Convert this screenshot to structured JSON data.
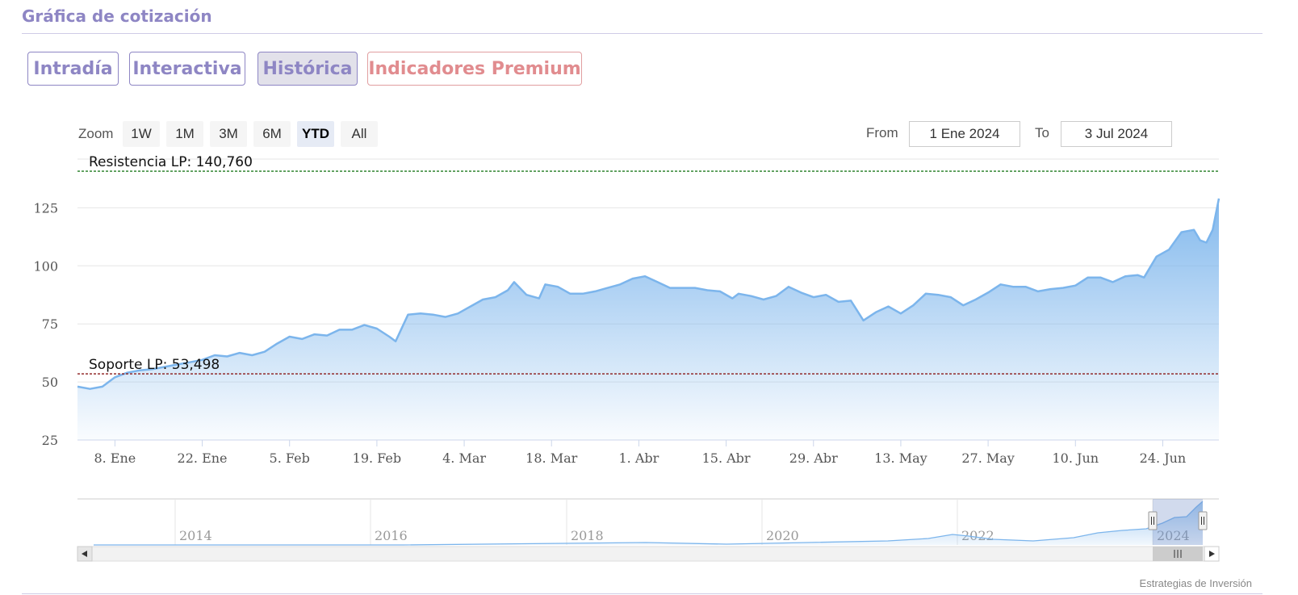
{
  "page": {
    "title": "Gráfica de cotización"
  },
  "tabs": [
    {
      "label": "Intradía"
    },
    {
      "label": "Interactiva"
    },
    {
      "label": "Histórica"
    },
    {
      "label": "Indicadores Premium"
    }
  ],
  "zoom": {
    "label": "Zoom",
    "buttons": [
      "1W",
      "1M",
      "3M",
      "6M",
      "YTD",
      "All"
    ],
    "selected": "YTD"
  },
  "range": {
    "from_label": "From",
    "from_value": "1 Ene 2024",
    "to_label": "To",
    "to_value": "3 Jul 2024"
  },
  "credits": "Estrategias de Inversión",
  "colors": {
    "accent": "#8e86c4",
    "premium": "#e18c8f",
    "series": "#7cb5ec",
    "resistance": "#1e7a1e",
    "support": "#8b1a1a"
  },
  "navigator_icons": {
    "left": "arrow-left-icon",
    "right": "arrow-right-icon",
    "thumb": "grip-icon"
  },
  "chart_data": {
    "type": "area",
    "x_start": "2024-01-02",
    "x_end": "2024-07-03",
    "ylim": [
      25,
      146
    ],
    "yticks": [
      25,
      50,
      75,
      100,
      125
    ],
    "xticks": [
      {
        "date": "2024-01-08",
        "label": "8. Ene"
      },
      {
        "date": "2024-01-22",
        "label": "22. Ene"
      },
      {
        "date": "2024-02-05",
        "label": "5. Feb"
      },
      {
        "date": "2024-02-19",
        "label": "19. Feb"
      },
      {
        "date": "2024-03-04",
        "label": "4. Mar"
      },
      {
        "date": "2024-03-18",
        "label": "18. Mar"
      },
      {
        "date": "2024-04-01",
        "label": "1. Abr"
      },
      {
        "date": "2024-04-15",
        "label": "15. Abr"
      },
      {
        "date": "2024-04-29",
        "label": "29. Abr"
      },
      {
        "date": "2024-05-13",
        "label": "13. May"
      },
      {
        "date": "2024-05-27",
        "label": "27. May"
      },
      {
        "date": "2024-06-10",
        "label": "10. Jun"
      },
      {
        "date": "2024-06-24",
        "label": "24. Jun"
      }
    ],
    "series": [
      {
        "points": [
          [
            "2024-01-02",
            48.0
          ],
          [
            "2024-01-04",
            47.0
          ],
          [
            "2024-01-06",
            48.0
          ],
          [
            "2024-01-08",
            52.0
          ],
          [
            "2024-01-10",
            54.0
          ],
          [
            "2024-01-12",
            55.0
          ],
          [
            "2024-01-14",
            55.5
          ],
          [
            "2024-01-16",
            56.5
          ],
          [
            "2024-01-18",
            57.5
          ],
          [
            "2024-01-20",
            58.5
          ],
          [
            "2024-01-22",
            59.5
          ],
          [
            "2024-01-24",
            61.5
          ],
          [
            "2024-01-26",
            61.0
          ],
          [
            "2024-01-28",
            62.5
          ],
          [
            "2024-01-30",
            61.5
          ],
          [
            "2024-02-01",
            63.0
          ],
          [
            "2024-02-03",
            66.5
          ],
          [
            "2024-02-05",
            69.5
          ],
          [
            "2024-02-07",
            68.5
          ],
          [
            "2024-02-09",
            70.5
          ],
          [
            "2024-02-11",
            70.0
          ],
          [
            "2024-02-13",
            72.5
          ],
          [
            "2024-02-15",
            72.5
          ],
          [
            "2024-02-17",
            74.5
          ],
          [
            "2024-02-19",
            73.0
          ],
          [
            "2024-02-21",
            69.5
          ],
          [
            "2024-02-22",
            67.5
          ],
          [
            "2024-02-24",
            79.0
          ],
          [
            "2024-02-26",
            79.5
          ],
          [
            "2024-02-28",
            79.0
          ],
          [
            "2024-03-01",
            78.0
          ],
          [
            "2024-03-03",
            79.5
          ],
          [
            "2024-03-05",
            82.5
          ],
          [
            "2024-03-07",
            85.5
          ],
          [
            "2024-03-09",
            86.5
          ],
          [
            "2024-03-11",
            89.5
          ],
          [
            "2024-03-12",
            93.0
          ],
          [
            "2024-03-14",
            87.5
          ],
          [
            "2024-03-16",
            86.0
          ],
          [
            "2024-03-17",
            92.0
          ],
          [
            "2024-03-19",
            91.0
          ],
          [
            "2024-03-21",
            88.0
          ],
          [
            "2024-03-23",
            88.0
          ],
          [
            "2024-03-25",
            89.0
          ],
          [
            "2024-03-27",
            90.5
          ],
          [
            "2024-03-29",
            92.0
          ],
          [
            "2024-03-31",
            94.5
          ],
          [
            "2024-04-02",
            95.5
          ],
          [
            "2024-04-04",
            93.0
          ],
          [
            "2024-04-06",
            90.5
          ],
          [
            "2024-04-08",
            90.5
          ],
          [
            "2024-04-10",
            90.5
          ],
          [
            "2024-04-12",
            89.5
          ],
          [
            "2024-04-14",
            89.0
          ],
          [
            "2024-04-16",
            86.0
          ],
          [
            "2024-04-17",
            88.0
          ],
          [
            "2024-04-19",
            87.0
          ],
          [
            "2024-04-21",
            85.5
          ],
          [
            "2024-04-23",
            87.0
          ],
          [
            "2024-04-25",
            91.0
          ],
          [
            "2024-04-27",
            88.5
          ],
          [
            "2024-04-29",
            86.5
          ],
          [
            "2024-05-01",
            87.5
          ],
          [
            "2024-05-03",
            84.5
          ],
          [
            "2024-05-05",
            85.0
          ],
          [
            "2024-05-07",
            76.5
          ],
          [
            "2024-05-09",
            80.0
          ],
          [
            "2024-05-11",
            82.5
          ],
          [
            "2024-05-13",
            79.5
          ],
          [
            "2024-05-15",
            83.0
          ],
          [
            "2024-05-17",
            88.0
          ],
          [
            "2024-05-19",
            87.5
          ],
          [
            "2024-05-21",
            86.5
          ],
          [
            "2024-05-23",
            83.0
          ],
          [
            "2024-05-25",
            85.5
          ],
          [
            "2024-05-27",
            88.5
          ],
          [
            "2024-05-29",
            92.0
          ],
          [
            "2024-05-31",
            91.0
          ],
          [
            "2024-06-02",
            91.0
          ],
          [
            "2024-06-04",
            89.0
          ],
          [
            "2024-06-06",
            90.0
          ],
          [
            "2024-06-08",
            90.5
          ],
          [
            "2024-06-10",
            91.5
          ],
          [
            "2024-06-12",
            95.0
          ],
          [
            "2024-06-14",
            95.0
          ],
          [
            "2024-06-16",
            93.0
          ],
          [
            "2024-06-18",
            95.5
          ],
          [
            "2024-06-20",
            96.0
          ],
          [
            "2024-06-21",
            95.0
          ],
          [
            "2024-06-23",
            104.0
          ],
          [
            "2024-06-25",
            107.0
          ],
          [
            "2024-06-27",
            114.5
          ],
          [
            "2024-06-29",
            115.5
          ],
          [
            "2024-06-30",
            111.0
          ],
          [
            "2024-07-01",
            110.0
          ],
          [
            "2024-07-02",
            115.5
          ],
          [
            "2024-07-03",
            129.0
          ]
        ]
      }
    ],
    "annotations": [
      {
        "label": "Resistencia LP: 140,760",
        "value": 140.76
      },
      {
        "label": "Soporte LP: 53,498",
        "value": 53.498
      }
    ],
    "navigator": {
      "year_labels": [
        "2014",
        "2016",
        "2018",
        "2020",
        "2022",
        "2024"
      ],
      "selected_range": [
        "2024-01-02",
        "2024-07-03"
      ]
    }
  }
}
